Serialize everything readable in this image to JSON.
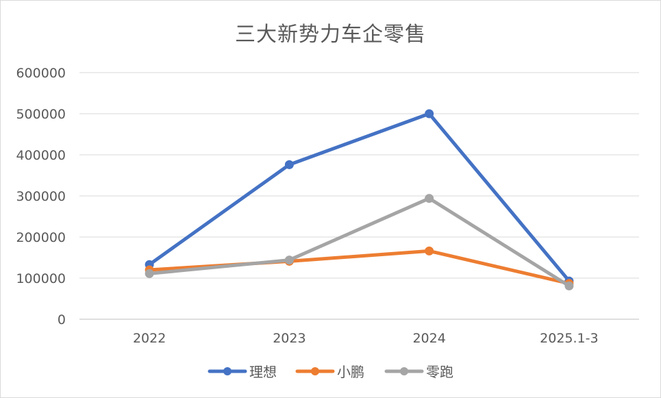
{
  "chart_data": {
    "type": "line",
    "title": "三大新势力车企零售",
    "categories": [
      "2022",
      "2023",
      "2024",
      "2025.1-3"
    ],
    "ylim": [
      0,
      600000
    ],
    "yticks": [
      "0",
      "100000",
      "200000",
      "300000",
      "400000",
      "500000",
      "600000"
    ],
    "grid": true,
    "legend_position": "bottom",
    "series": [
      {
        "name": "理想",
        "color": "#4472c4",
        "values": [
          133000,
          376000,
          500000,
          93000
        ]
      },
      {
        "name": "小鹏",
        "color": "#ed7d31",
        "values": [
          120000,
          141000,
          166000,
          87000
        ]
      },
      {
        "name": "零跑",
        "color": "#a5a5a5",
        "values": [
          111000,
          144000,
          294000,
          81000
        ]
      }
    ]
  }
}
